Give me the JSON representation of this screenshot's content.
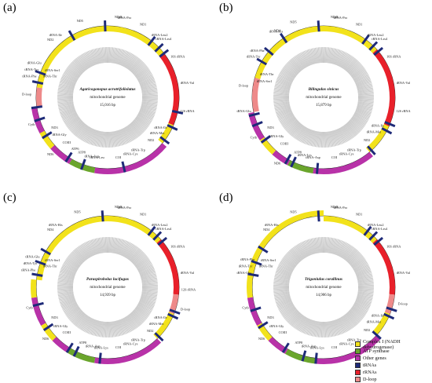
{
  "colors": {
    "complex1": "#f2e21b",
    "atp": "#6aa52c",
    "other": "#b832a8",
    "trna": "#1e2a78",
    "rrna": "#e8202a",
    "dloop": "#ee8a8a",
    "inner_ring": "#c8c8c8",
    "tick": "#000000"
  },
  "legend": [
    {
      "label": "Complex I (NADH dehydrogenase)",
      "color": "#f2e21b"
    },
    {
      "label": "ATP synthase",
      "color": "#6aa52c"
    },
    {
      "label": "Other genes",
      "color": "#b832a8"
    },
    {
      "label": "tRNAs",
      "color": "#1e2a78"
    },
    {
      "label": "rRNAs",
      "color": "#e8202a"
    },
    {
      "label": "D-loop",
      "color": "#ee8a8a"
    }
  ],
  "panels": [
    {
      "id": "a",
      "label": "(a)",
      "species": "Agaricogonopus acrotrifoliolatus",
      "subtitle": "mitochondrial genome",
      "size": "15,016 bp",
      "segments": [
        {
          "from": 0,
          "to": 40,
          "type": "complex1"
        },
        {
          "from": 40,
          "to": 52,
          "type": "complex1"
        },
        {
          "from": 52,
          "to": 90,
          "type": "rrna"
        },
        {
          "from": 90,
          "to": 113,
          "type": "rrna"
        },
        {
          "from": 113,
          "to": 130,
          "type": "complex1"
        },
        {
          "from": 130,
          "to": 168,
          "type": "other"
        },
        {
          "from": 168,
          "to": 190,
          "type": "other"
        },
        {
          "from": 190,
          "to": 210,
          "type": "atp"
        },
        {
          "from": 210,
          "to": 228,
          "type": "other"
        },
        {
          "from": 228,
          "to": 242,
          "type": "complex1"
        },
        {
          "from": 242,
          "to": 262,
          "type": "other"
        },
        {
          "from": 262,
          "to": 278,
          "type": "dloop"
        },
        {
          "from": 278,
          "to": 360,
          "type": "complex1"
        }
      ],
      "trnas": [
        -2,
        38,
        46,
        52,
        102,
        115,
        127,
        167,
        200,
        213,
        238,
        252,
        262,
        282,
        290,
        330
      ],
      "labels_out": [
        {
          "ang": -40,
          "text": "tRNA-Ile"
        },
        {
          "ang": -20,
          "text": "ND5"
        },
        {
          "ang": 8,
          "text": "ND4L"
        },
        {
          "ang": 12,
          "text": "tRNA-Pro"
        },
        {
          "ang": 26,
          "text": "ND1"
        },
        {
          "ang": 40,
          "text": "tRNA-Leu2"
        },
        {
          "ang": 44,
          "text": "tRNA-Leu1"
        },
        {
          "ang": 60,
          "text": "16S rRNA"
        },
        {
          "ang": 80,
          "text": "tRNA-Val"
        },
        {
          "ang": 100,
          "text": "12S rRNA"
        },
        {
          "ang": 225,
          "text": "ND6"
        },
        {
          "ang": 250,
          "text": "Cytb"
        },
        {
          "ang": 272,
          "text": "D-loop"
        },
        {
          "ang": 285,
          "text": "tRNA-Phe"
        },
        {
          "ang": 290,
          "text": "tRNA-Tyr"
        },
        {
          "ang": 295,
          "text": "tRNA-Glu"
        },
        {
          "ang": 315,
          "text": "ND2"
        }
      ],
      "labels_in": [
        {
          "ang": 120,
          "text": "tRNA-Ile"
        },
        {
          "ang": 126,
          "text": "tRNA-Met"
        },
        {
          "ang": 135,
          "text": "ND2"
        },
        {
          "ang": 150,
          "text": "tRNA-Trp"
        },
        {
          "ang": 158,
          "text": "tRNA-Cys"
        },
        {
          "ang": 170,
          "text": "COI"
        },
        {
          "ang": 190,
          "text": "tRNA-Leu"
        },
        {
          "ang": 195,
          "text": "tRNA-Asp"
        },
        {
          "ang": 205,
          "text": "ATP8"
        },
        {
          "ang": 212,
          "text": "ATP6"
        },
        {
          "ang": 222,
          "text": "COIII"
        },
        {
          "ang": 232,
          "text": "tRNA-Gly"
        },
        {
          "ang": 240,
          "text": "ND3"
        },
        {
          "ang": 290,
          "text": "tRNA-Thr"
        },
        {
          "ang": 296,
          "text": "tRNA-Ser1"
        }
      ]
    },
    {
      "id": "b",
      "label": "(b)",
      "species": "Bilingulus sinicus",
      "subtitle": "mitochondrial genome",
      "size": "15,879 bp",
      "segments": [
        {
          "from": 0,
          "to": 48,
          "type": "complex1"
        },
        {
          "from": 48,
          "to": 114,
          "type": "rrna"
        },
        {
          "from": 114,
          "to": 140,
          "type": "complex1"
        },
        {
          "from": 140,
          "to": 188,
          "type": "other"
        },
        {
          "from": 188,
          "to": 208,
          "type": "atp"
        },
        {
          "from": 208,
          "to": 222,
          "type": "other"
        },
        {
          "from": 222,
          "to": 236,
          "type": "complex1"
        },
        {
          "from": 236,
          "to": 258,
          "type": "other"
        },
        {
          "from": 258,
          "to": 286,
          "type": "dloop"
        },
        {
          "from": 286,
          "to": 360,
          "type": "complex1"
        }
      ],
      "trnas": [
        -4,
        36,
        44,
        50,
        112,
        118,
        138,
        185,
        205,
        210,
        234,
        248,
        256,
        300,
        310,
        326
      ],
      "labels_out": [
        {
          "ang": -36,
          "text": "tRNA-His"
        },
        {
          "ang": -22,
          "text": "ND5"
        },
        {
          "ang": 8,
          "text": "ND4L"
        },
        {
          "ang": 12,
          "text": "tRNA-Pro"
        },
        {
          "ang": 26,
          "text": "ND1"
        },
        {
          "ang": 40,
          "text": "tRNA-Leu2"
        },
        {
          "ang": 44,
          "text": "tRNA-Leu1"
        },
        {
          "ang": 60,
          "text": "16S rRNA"
        },
        {
          "ang": 80,
          "text": "tRNA-Val"
        },
        {
          "ang": 100,
          "text": "12S rRNA"
        },
        {
          "ang": 215,
          "text": "ND6"
        },
        {
          "ang": 240,
          "text": "Cytb"
        },
        {
          "ang": 260,
          "text": "tRNA-Glu"
        },
        {
          "ang": 278,
          "text": "D-loop"
        },
        {
          "ang": 300,
          "text": "tRNA-Tyr"
        },
        {
          "ang": 305,
          "text": "tRNA-Phe"
        },
        {
          "ang": 325,
          "text": "ND4"
        }
      ],
      "labels_in": [
        {
          "ang": 118,
          "text": "tRNA-Ile"
        },
        {
          "ang": 125,
          "text": "tRNA-Met"
        },
        {
          "ang": 135,
          "text": "ND2"
        },
        {
          "ang": 150,
          "text": "tRNA-Trp"
        },
        {
          "ang": 158,
          "text": "tRNA-Cys"
        },
        {
          "ang": 170,
          "text": "COI"
        },
        {
          "ang": 190,
          "text": "tRNA-Asp"
        },
        {
          "ang": 198,
          "text": "tRNA-Lys"
        },
        {
          "ang": 205,
          "text": "ATP8"
        },
        {
          "ang": 220,
          "text": "COIII"
        },
        {
          "ang": 230,
          "text": "tRNA-Gly"
        },
        {
          "ang": 240,
          "text": "ND3"
        },
        {
          "ang": 285,
          "text": "tRNA-Ser1"
        },
        {
          "ang": 292,
          "text": "tRNA-Thr"
        }
      ]
    },
    {
      "id": "c",
      "label": "(c)",
      "species": "Paraspirobolus lucifugus",
      "subtitle": "mitochondrial genome",
      "size": "14,939 bp",
      "segments": [
        {
          "from": 0,
          "to": 48,
          "type": "complex1"
        },
        {
          "from": 48,
          "to": 96,
          "type": "rrna"
        },
        {
          "from": 96,
          "to": 112,
          "type": "dloop"
        },
        {
          "from": 112,
          "to": 136,
          "type": "complex1"
        },
        {
          "from": 136,
          "to": 190,
          "type": "other"
        },
        {
          "from": 190,
          "to": 212,
          "type": "atp"
        },
        {
          "from": 212,
          "to": 226,
          "type": "other"
        },
        {
          "from": 226,
          "to": 240,
          "type": "complex1"
        },
        {
          "from": 240,
          "to": 262,
          "type": "other"
        },
        {
          "from": 262,
          "to": 276,
          "type": "complex1"
        },
        {
          "from": 276,
          "to": 360,
          "type": "complex1"
        }
      ],
      "trnas": [
        -4,
        38,
        44,
        50,
        110,
        114,
        134,
        186,
        206,
        212,
        236,
        256,
        280,
        290,
        300
      ],
      "labels_out": [
        {
          "ang": -40,
          "text": "tRNA-His"
        },
        {
          "ang": -22,
          "text": "ND5"
        },
        {
          "ang": 8,
          "text": "ND4L"
        },
        {
          "ang": 12,
          "text": "tRNA-Pro"
        },
        {
          "ang": 26,
          "text": "ND1"
        },
        {
          "ang": 40,
          "text": "tRNA-Leu2"
        },
        {
          "ang": 44,
          "text": "tRNA-Leu1"
        },
        {
          "ang": 60,
          "text": "16S rRNA"
        },
        {
          "ang": 80,
          "text": "tRNA-Val"
        },
        {
          "ang": 92,
          "text": "12S rRNA"
        },
        {
          "ang": 106,
          "text": "D-loop"
        },
        {
          "ang": 230,
          "text": "ND6"
        },
        {
          "ang": 255,
          "text": "Cytb"
        },
        {
          "ang": 282,
          "text": "tRNA-Phe"
        },
        {
          "ang": 287,
          "text": "tRNA-Tyr"
        },
        {
          "ang": 292,
          "text": "tRNA-Glu"
        },
        {
          "ang": 315,
          "text": "ND4"
        }
      ],
      "labels_in": [
        {
          "ang": 120,
          "text": "tRNA-Ile"
        },
        {
          "ang": 127,
          "text": "tRNA-Met"
        },
        {
          "ang": 136,
          "text": "ND2"
        },
        {
          "ang": 150,
          "text": "tRNA-Trp"
        },
        {
          "ang": 158,
          "text": "tRNA-Cys"
        },
        {
          "ang": 170,
          "text": "COI"
        },
        {
          "ang": 186,
          "text": "tRNA-Lys"
        },
        {
          "ang": 194,
          "text": "tRNA-Asp"
        },
        {
          "ang": 204,
          "text": "ATP8"
        },
        {
          "ang": 222,
          "text": "COIII"
        },
        {
          "ang": 230,
          "text": "tRNA-Gly"
        },
        {
          "ang": 240,
          "text": "ND3"
        },
        {
          "ang": 290,
          "text": "tRNA-Thr"
        },
        {
          "ang": 296,
          "text": "tRNA-Ser1"
        }
      ]
    },
    {
      "id": "d",
      "label": "(d)",
      "species": "Trigoniulus corallinus",
      "subtitle": "mitochondrial genome",
      "size": "14,906 bp",
      "segments": [
        {
          "from": 0,
          "to": 48,
          "type": "complex1"
        },
        {
          "from": 48,
          "to": 96,
          "type": "rrna"
        },
        {
          "from": 96,
          "to": 112,
          "type": "dloop"
        },
        {
          "from": 112,
          "to": 132,
          "type": "complex1"
        },
        {
          "from": 132,
          "to": 186,
          "type": "other"
        },
        {
          "from": 186,
          "to": 210,
          "type": "atp"
        },
        {
          "from": 210,
          "to": 226,
          "type": "other"
        },
        {
          "from": 226,
          "to": 240,
          "type": "complex1"
        },
        {
          "from": 240,
          "to": 262,
          "type": "other"
        },
        {
          "from": 262,
          "to": 360,
          "type": "complex1"
        }
      ],
      "trnas": [
        -4,
        38,
        44,
        50,
        108,
        114,
        132,
        186,
        196,
        212,
        238,
        252,
        280,
        290,
        302
      ],
      "labels_out": [
        {
          "ang": -40,
          "text": "tRNA-His"
        },
        {
          "ang": -22,
          "text": "ND5"
        },
        {
          "ang": 8,
          "text": "ND4L"
        },
        {
          "ang": 12,
          "text": "tRNA-Pro"
        },
        {
          "ang": 26,
          "text": "ND1"
        },
        {
          "ang": 40,
          "text": "tRNA-Leu2"
        },
        {
          "ang": 44,
          "text": "tRNA-Leu1"
        },
        {
          "ang": 60,
          "text": "16S rRNA"
        },
        {
          "ang": 80,
          "text": "tRNA-Val"
        },
        {
          "ang": 102,
          "text": "D-loop"
        },
        {
          "ang": 230,
          "text": "ND6"
        },
        {
          "ang": 255,
          "text": "Cytb"
        },
        {
          "ang": 280,
          "text": "tRNA-Glu"
        },
        {
          "ang": 285,
          "text": "tRNA-Tyr"
        },
        {
          "ang": 290,
          "text": "tRNA-Phe"
        },
        {
          "ang": 315,
          "text": "ND4"
        }
      ],
      "labels_in": [
        {
          "ang": 118,
          "text": "tRNA-Ile"
        },
        {
          "ang": 125,
          "text": "tRNA-Met"
        },
        {
          "ang": 135,
          "text": "ND2"
        },
        {
          "ang": 150,
          "text": "tRNA-Trp"
        },
        {
          "ang": 158,
          "text": "tRNA-Cys"
        },
        {
          "ang": 170,
          "text": "COI"
        },
        {
          "ang": 186,
          "text": "tRNA-Lys"
        },
        {
          "ang": 194,
          "text": "tRNA-Asp"
        },
        {
          "ang": 204,
          "text": "ATP8"
        },
        {
          "ang": 222,
          "text": "COIII"
        },
        {
          "ang": 230,
          "text": "tRNA-Gly"
        },
        {
          "ang": 240,
          "text": "ND3"
        },
        {
          "ang": 290,
          "text": "tRNA-Thr"
        },
        {
          "ang": 296,
          "text": "tRNA-Ser1"
        }
      ]
    }
  ]
}
